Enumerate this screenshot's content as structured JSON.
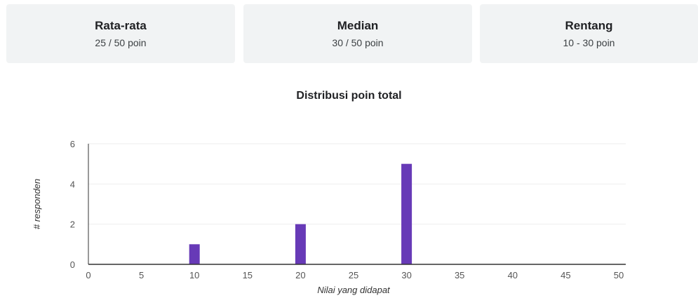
{
  "summary": {
    "mean": {
      "title": "Rata-rata",
      "value": "25 / 50 poin"
    },
    "median": {
      "title": "Median",
      "value": "30 / 50 poin"
    },
    "range": {
      "title": "Rentang",
      "value": "10 - 30 poin"
    }
  },
  "chart_data": {
    "type": "bar",
    "title": "Distribusi poin total",
    "xlabel": "Nilai yang didapat",
    "ylabel": "# responden",
    "x": [
      10,
      20,
      30
    ],
    "values": [
      1,
      2,
      5
    ],
    "xlim": [
      0,
      50
    ],
    "ylim": [
      0,
      6
    ],
    "xticks": [
      0,
      5,
      10,
      15,
      20,
      25,
      30,
      35,
      40,
      45,
      50
    ],
    "yticks": [
      0,
      2,
      4,
      6
    ],
    "grid": true,
    "bar_color": "#673ab7"
  }
}
